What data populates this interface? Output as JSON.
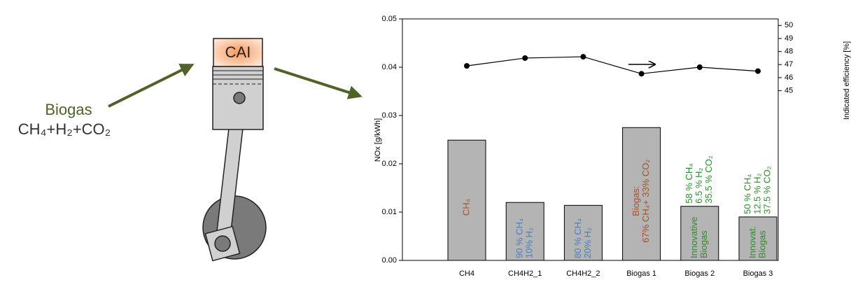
{
  "diagram": {
    "input_label": "Biogas",
    "formula": "CH₄+H₂+CO₂",
    "engine_label": "CAI"
  },
  "chart_data": {
    "type": "bar",
    "categories": [
      "CH4",
      "CH4H2_1",
      "CH4H2_2",
      "Biogas 1",
      "Biogas 2",
      "Biogas 3"
    ],
    "series": [
      {
        "type": "bar",
        "color": "#b4b4b4",
        "values": [
          0.0249,
          0.012,
          0.0114,
          0.0275,
          0.0112,
          0.009
        ],
        "bar_labels": [
          [
            "CH₄"
          ],
          [
            "90 % CH₄",
            "10% H₂"
          ],
          [
            "80 % CH₄",
            "20% H₂"
          ],
          [
            "Biogas:",
            "67% CH₄+ 33% CO₂"
          ],
          [
            "Innovative",
            "Biogas"
          ],
          [
            "Innovat.",
            "Biogas"
          ]
        ],
        "above_labels": [
          null,
          null,
          null,
          null,
          [
            "58 % CH₄",
            "6.5 % H₂",
            "35.5 % CO₂"
          ],
          [
            "50 % CH₄",
            "12.5 % H₂",
            "37.5 % CO₂"
          ]
        ],
        "label_colors": [
          "#a0522d",
          "#4a7ec0",
          "#4a7ec0",
          "#a0522d",
          "#2e8b2e",
          "#2e8b2e"
        ]
      },
      {
        "type": "line",
        "axis": "y2",
        "color": "#000000",
        "values": [
          46.9,
          47.5,
          47.6,
          46.3,
          46.8,
          46.5
        ]
      }
    ],
    "ylabel": "NOx [g/kWh]",
    "y2label": "Indicated efficiency [%]",
    "ylim": [
      0,
      0.05
    ],
    "yticks": [
      {
        "value": 0,
        "label": "0.00"
      },
      0.01,
      0.02,
      0.03,
      0.04,
      0.05
    ],
    "y2lim": [
      32,
      50.5
    ],
    "y2ticks": [
      45,
      46,
      47,
      48,
      49,
      50
    ]
  }
}
